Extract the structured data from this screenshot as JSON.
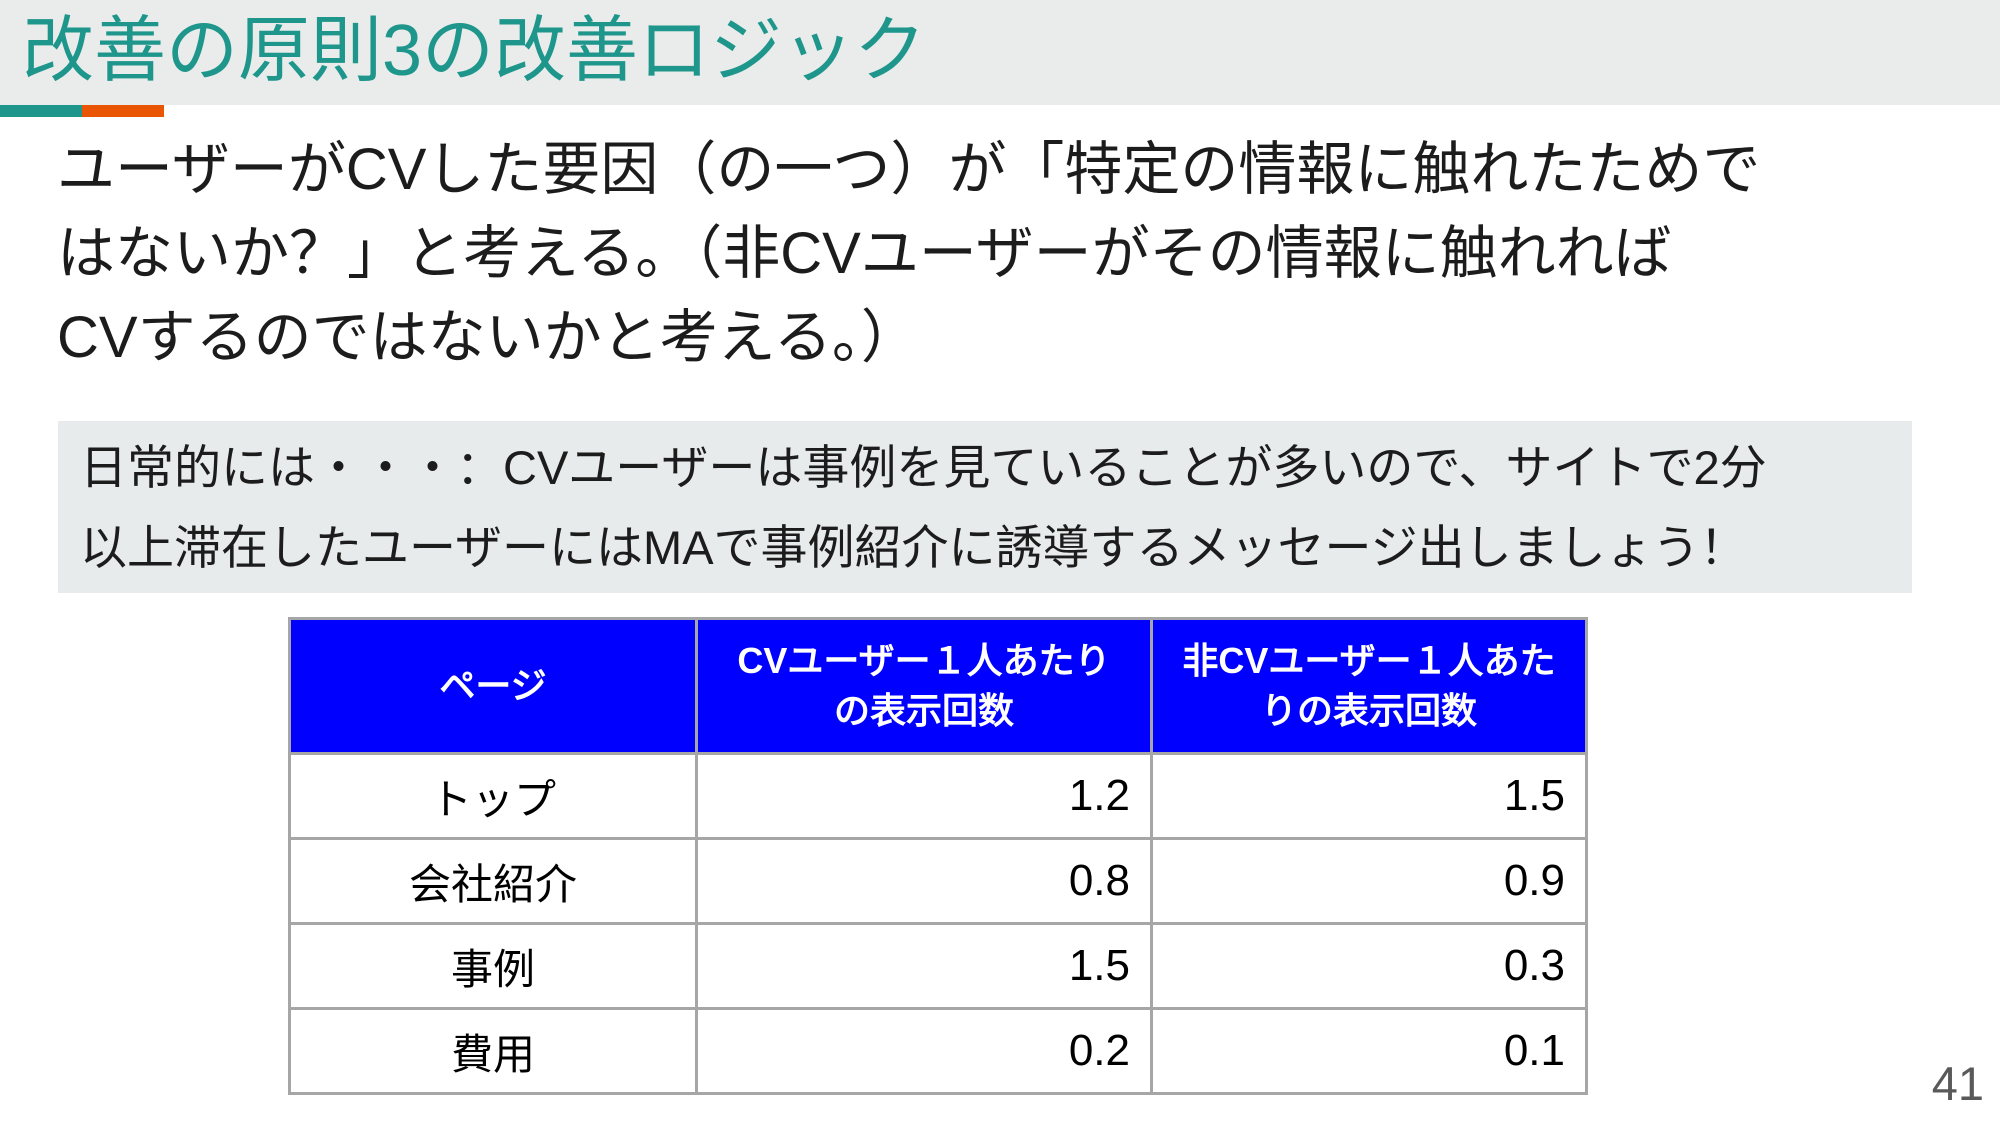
{
  "slide": {
    "title": "改善の原則3の改善ロジック",
    "page_number": "41"
  },
  "body": {
    "paragraph": "ユーザーがCVした要因（の一つ）が「特定の情報に触れたためで\nはないか？」と考える。（非CVユーザーがその情報に触れれば\nCVするのではないかと考える。）"
  },
  "highlight": {
    "text": "日常的には・・・：CVユーザーは事例を見ていることが多いので、サイトで2分\n以上滞在したユーザーにはMAで事例紹介に誘導するメッセージ出しましょう！"
  },
  "table": {
    "headers": [
      "ページ",
      "CVユーザー１人あたり\nの表示回数",
      "非CVユーザー１人あた\nりの表示回数"
    ],
    "rows": [
      {
        "page": "トップ",
        "cv": "1.2",
        "non_cv": "1.5"
      },
      {
        "page": "会社紹介",
        "cv": "0.8",
        "non_cv": "0.9"
      },
      {
        "page": "事例",
        "cv": "1.5",
        "non_cv": "0.3"
      },
      {
        "page": "費用",
        "cv": "0.2",
        "non_cv": "0.1"
      }
    ]
  },
  "colors": {
    "accent_teal": "#1e968b",
    "accent_orange": "#ea5504",
    "header_blue": "#0000fe",
    "band_gray": "#e9eceb",
    "box_gray": "#e8ebeb",
    "grid_gray": "#a6a6a6",
    "page_number_gray": "#595959"
  }
}
